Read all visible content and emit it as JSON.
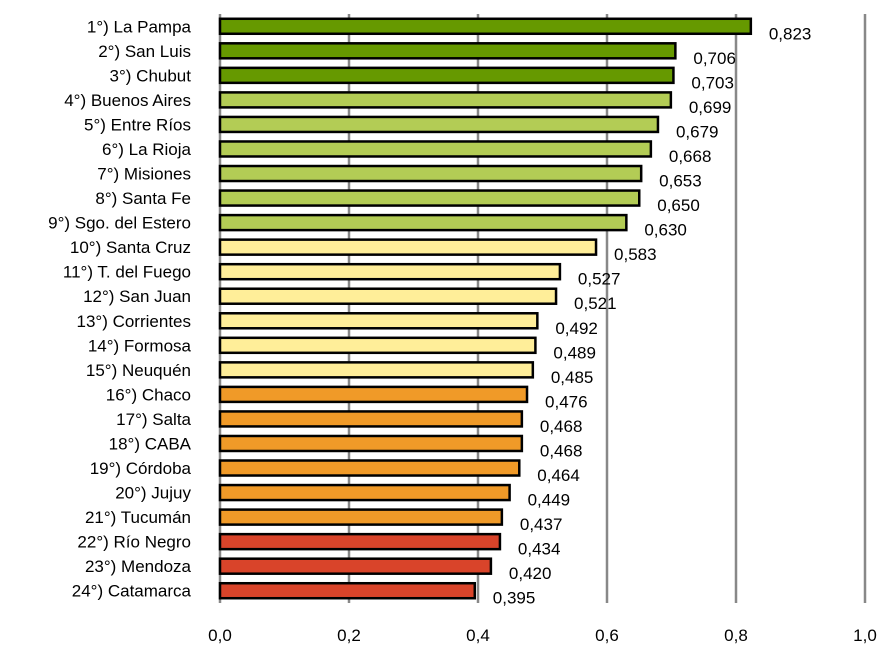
{
  "chart_data": {
    "type": "bar",
    "orientation": "horizontal",
    "categories": [
      "1°) La Pampa",
      "2°) San Luis",
      "3°) Chubut",
      "4°) Buenos Aires",
      "5°) Entre Ríos",
      "6°) La Rioja",
      "7°) Misiones",
      "8°) Santa Fe",
      "9°) Sgo. del Estero",
      "10°) Santa Cruz",
      "11°) T. del Fuego",
      "12°) San Juan",
      "13°) Corrientes",
      "14°) Formosa",
      "15°) Neuquén",
      "16°) Chaco",
      "17°) Salta",
      "18°) CABA",
      "19°) Córdoba",
      "20°) Jujuy",
      "21°) Tucumán",
      "22°) Río Negro",
      "23°) Mendoza",
      "24°) Catamarca"
    ],
    "values": [
      0.823,
      0.706,
      0.703,
      0.699,
      0.679,
      0.668,
      0.653,
      0.65,
      0.63,
      0.583,
      0.527,
      0.521,
      0.492,
      0.489,
      0.485,
      0.476,
      0.468,
      0.468,
      0.464,
      0.449,
      0.437,
      0.434,
      0.42,
      0.395
    ],
    "value_labels": [
      "0,823",
      "0,706",
      "0,703",
      "0,699",
      "0,679",
      "0,668",
      "0,653",
      "0,650",
      "0,630",
      "0,583",
      "0,527",
      "0,521",
      "0,492",
      "0,489",
      "0,485",
      "0,476",
      "0,468",
      "0,468",
      "0,464",
      "0,449",
      "0,437",
      "0,434",
      "0,420",
      "0,395"
    ],
    "bar_colors": [
      "#669900",
      "#669900",
      "#669900",
      "#b3cc55",
      "#b3cc55",
      "#b3cc55",
      "#b3cc55",
      "#b3cc55",
      "#b3cc55",
      "#ffee99",
      "#ffee99",
      "#ffee99",
      "#ffee99",
      "#ffee99",
      "#ffee99",
      "#f09a28",
      "#f09a28",
      "#f09a28",
      "#f09a28",
      "#f09a28",
      "#f09a28",
      "#d9442a",
      "#d9442a",
      "#d9442a"
    ],
    "xlim": [
      0,
      1.0
    ],
    "xticks": [
      0.0,
      0.2,
      0.4,
      0.6,
      0.8,
      1.0
    ],
    "xtick_labels": [
      "0,0",
      "0,2",
      "0,4",
      "0,6",
      "0,8",
      "1,0"
    ],
    "grid": "vertical",
    "gridline_color": "#888888",
    "bar_border_color": "#000000",
    "title": "",
    "xlabel": "",
    "ylabel": ""
  }
}
